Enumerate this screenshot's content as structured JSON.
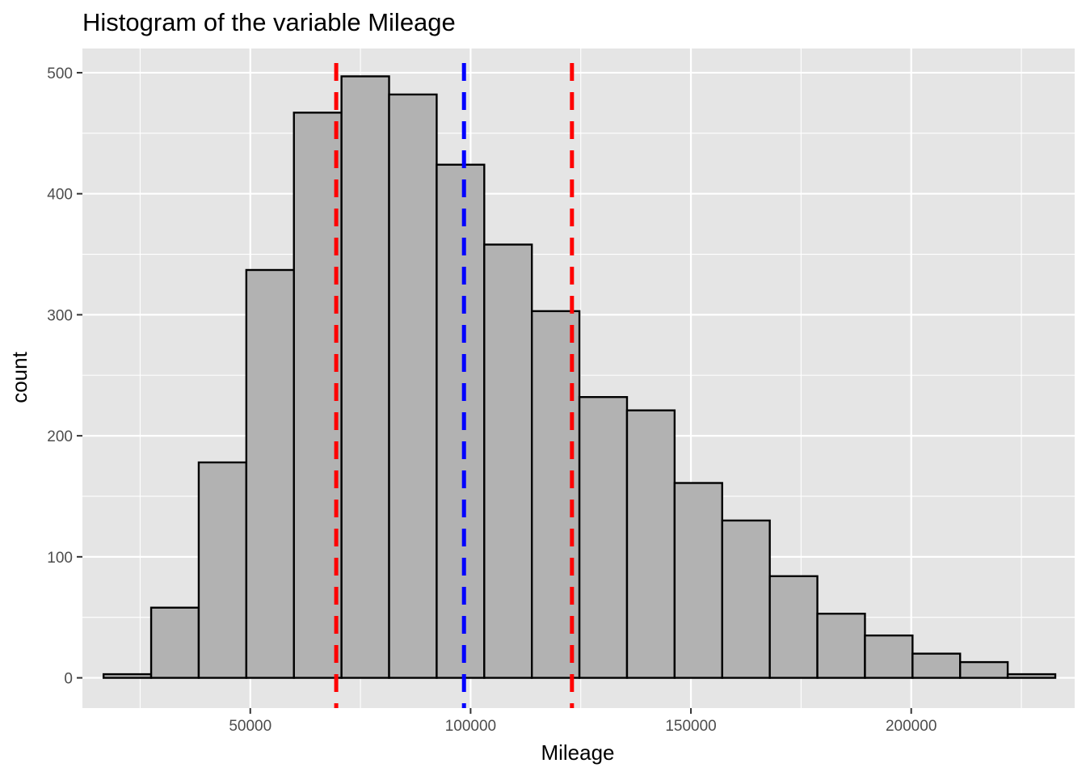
{
  "chart_data": {
    "type": "bar",
    "title": "Histogram of the variable Mileage",
    "xlabel": "Mileage",
    "ylabel": "count",
    "xlim": [
      11900,
      237100
    ],
    "ylim": [
      -25,
      520
    ],
    "x_ticks": [
      50000,
      100000,
      150000,
      200000
    ],
    "x_tick_labels": [
      "50000",
      "100000",
      "150000",
      "200000"
    ],
    "y_ticks": [
      0,
      100,
      200,
      300,
      400,
      500
    ],
    "y_tick_labels": [
      "0",
      "100",
      "200",
      "300",
      "400",
      "500"
    ],
    "grid": true,
    "bin_width": 10800,
    "bin_starts": [
      16700,
      27500,
      38300,
      49100,
      59900,
      70700,
      81500,
      92300,
      103100,
      113900,
      124700,
      135500,
      146300,
      157100,
      167900,
      178700,
      189500,
      200300,
      211100,
      221900
    ],
    "values": [
      3,
      58,
      178,
      337,
      467,
      497,
      482,
      424,
      358,
      303,
      232,
      221,
      161,
      130,
      84,
      53,
      35,
      20,
      13,
      3
    ],
    "colors": {
      "panel": "#e5e5e5",
      "bar_fill": "#b2b2b2",
      "bar_stroke": "#000000",
      "mean_line": "#0000ff",
      "sd_lines": "#ff0000"
    },
    "reference_lines": [
      {
        "x": 69500,
        "color": "#ff0000",
        "style": "dashed"
      },
      {
        "x": 98500,
        "color": "#0000ff",
        "style": "dashed"
      },
      {
        "x": 123000,
        "color": "#ff0000",
        "style": "dashed"
      }
    ]
  }
}
